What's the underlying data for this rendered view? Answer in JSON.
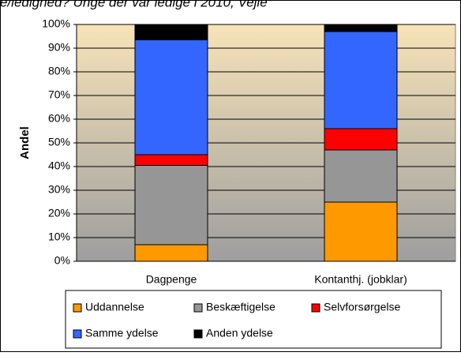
{
  "chart_data": {
    "type": "stacked_bar",
    "title": "e/ledighed? Unge der var ledige i 2010, Vejle",
    "ylabel": "Andel",
    "categories": [
      "Dagpenge",
      "Kontanthj. (jobklar)"
    ],
    "series": [
      {
        "name": "Uddannelse",
        "color": "#ff9900",
        "values": [
          7,
          25
        ]
      },
      {
        "name": "Beskæftigelse",
        "color": "#969696",
        "values": [
          33.5,
          22
        ]
      },
      {
        "name": "Selvforsørgelse",
        "color": "#ff0000",
        "values": [
          4.5,
          9
        ]
      },
      {
        "name": "Samme ydelse",
        "color": "#3366ff",
        "values": [
          48.5,
          41
        ]
      },
      {
        "name": "Anden ydelse",
        "color": "#000000",
        "values": [
          6.5,
          3
        ]
      }
    ],
    "ylim": [
      0,
      100
    ],
    "yticks": [
      {
        "value": 0,
        "label": "0%"
      },
      {
        "value": 10,
        "label": "10%"
      },
      {
        "value": 20,
        "label": "20%"
      },
      {
        "value": 30,
        "label": "30%"
      },
      {
        "value": 40,
        "label": "40%"
      },
      {
        "value": 50,
        "label": "50%"
      },
      {
        "value": 60,
        "label": "60%"
      },
      {
        "value": 70,
        "label": "70%"
      },
      {
        "value": 80,
        "label": "80%"
      },
      {
        "value": 90,
        "label": "90%"
      },
      {
        "value": 100,
        "label": "100%"
      }
    ]
  }
}
